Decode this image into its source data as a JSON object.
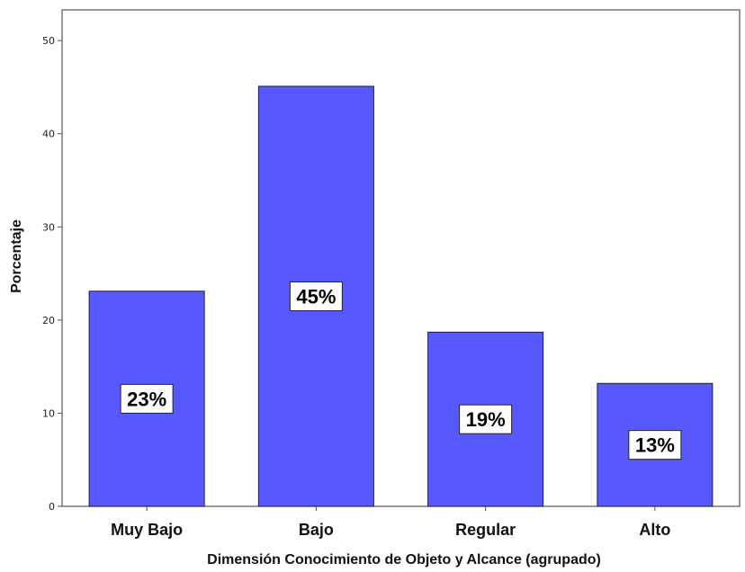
{
  "chart_data": {
    "type": "bar",
    "categories": [
      "Muy Bajo",
      "Bajo",
      "Regular",
      "Alto"
    ],
    "values": [
      23.1,
      45.1,
      18.7,
      13.2
    ],
    "data_labels": [
      "23%",
      "45%",
      "19%",
      "13%"
    ],
    "xlabel": "Dimensión Conocimiento de Objeto y Alcance (agrupado)",
    "ylabel": "Porcentaje",
    "yticks": [
      0,
      10,
      20,
      30,
      40,
      50
    ],
    "ylim": [
      0,
      53.3
    ],
    "grid": false,
    "bar_color": "#5858ff"
  }
}
